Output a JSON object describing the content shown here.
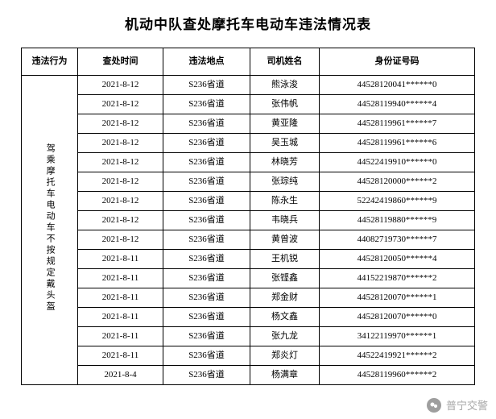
{
  "title": "机动中队查处摩托车电动车违法情况表",
  "columns": [
    "违法行为",
    "查处时间",
    "违法地点",
    "司机姓名",
    "身份证号码"
  ],
  "violation_behavior": "驾乘摩托车电动车不按规定戴头盔",
  "rows": [
    {
      "time": "2021-8-12",
      "location": "S236省道",
      "name": "熊泳浚",
      "id": "44528120041******0"
    },
    {
      "time": "2021-8-12",
      "location": "S236省道",
      "name": "张伟帆",
      "id": "44528119940******4"
    },
    {
      "time": "2021-8-12",
      "location": "S236省道",
      "name": "黄亚隆",
      "id": "44528119961******7"
    },
    {
      "time": "2021-8-12",
      "location": "S236省道",
      "name": "吴玉城",
      "id": "44528119961******6"
    },
    {
      "time": "2021-8-12",
      "location": "S236省道",
      "name": "林晓芳",
      "id": "44522419910******0"
    },
    {
      "time": "2021-8-12",
      "location": "S236省道",
      "name": "张琮纯",
      "id": "44528120000******2"
    },
    {
      "time": "2021-8-12",
      "location": "S236省道",
      "name": "陈永生",
      "id": "52242419860******9"
    },
    {
      "time": "2021-8-12",
      "location": "S236省道",
      "name": "韦晓兵",
      "id": "44528119880******9"
    },
    {
      "time": "2021-8-12",
      "location": "S236省道",
      "name": "黄曾波",
      "id": "44082719730******7"
    },
    {
      "time": "2021-8-11",
      "location": "S236省道",
      "name": "王机锐",
      "id": "44528120050******4"
    },
    {
      "time": "2021-8-11",
      "location": "S236省道",
      "name": "张铿鑫",
      "id": "44152219870******2"
    },
    {
      "time": "2021-8-11",
      "location": "S236省道",
      "name": "郑金财",
      "id": "44528120070******1"
    },
    {
      "time": "2021-8-11",
      "location": "S236省道",
      "name": "杨文鑫",
      "id": "44528120070******0"
    },
    {
      "time": "2021-8-11",
      "location": "S236省道",
      "name": "张九龙",
      "id": "34122119970******1"
    },
    {
      "time": "2021-8-11",
      "location": "S236省道",
      "name": "郑炎灯",
      "id": "44522419921******2"
    },
    {
      "time": "2021-8-4",
      "location": "S236省道",
      "name": "杨满章",
      "id": "44528119960******2"
    }
  ],
  "footer": {
    "source_label": "普宁交警",
    "icon_bg": "#9e9e9e",
    "text_color": "#a8a8a8"
  },
  "style": {
    "title_fontsize": 17,
    "cell_fontsize": 11,
    "header_row_height": 34,
    "data_row_height": 24,
    "border_color": "#000000",
    "bg_color": "#ffffff"
  }
}
